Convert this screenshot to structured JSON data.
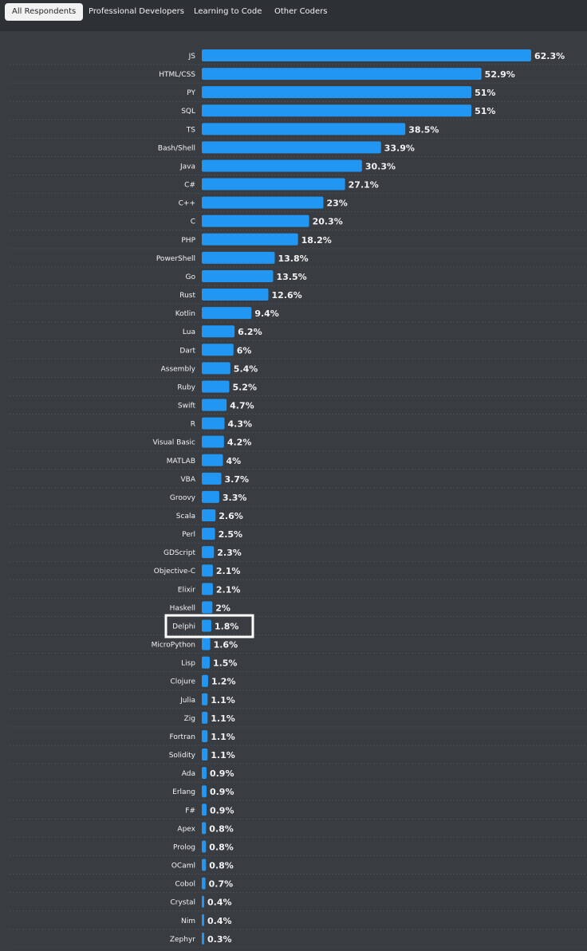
{
  "tabs": [
    {
      "label": "All Respondents",
      "active": true
    },
    {
      "label": "Professional Developers",
      "active": false
    },
    {
      "label": "Learning to Code",
      "active": false
    },
    {
      "label": "Other Coders",
      "active": false
    }
  ],
  "colors": {
    "bar": "#2196f3",
    "background": "#393c41",
    "tab_bar": "#2d3034",
    "text": "#f2f2f2",
    "highlight": "#ffffff"
  },
  "chart_data": {
    "type": "bar",
    "orientation": "horizontal",
    "value_suffix": "%",
    "highlighted": "Delphi",
    "xlim": [
      0,
      62.3
    ],
    "categories": [
      "JS",
      "HTML/CSS",
      "PY",
      "SQL",
      "TS",
      "Bash/Shell",
      "Java",
      "C#",
      "C++",
      "C",
      "PHP",
      "PowerShell",
      "Go",
      "Rust",
      "Kotlin",
      "Lua",
      "Dart",
      "Assembly",
      "Ruby",
      "Swift",
      "R",
      "Visual Basic",
      "MATLAB",
      "VBA",
      "Groovy",
      "Scala",
      "Perl",
      "GDScript",
      "Objective-C",
      "Elixir",
      "Haskell",
      "Delphi",
      "MicroPython",
      "Lisp",
      "Clojure",
      "Julia",
      "Zig",
      "Fortran",
      "Solidity",
      "Ada",
      "Erlang",
      "F#",
      "Apex",
      "Prolog",
      "OCaml",
      "Cobol",
      "Crystal",
      "Nim",
      "Zephyr"
    ],
    "values": [
      62.3,
      52.9,
      51,
      51,
      38.5,
      33.9,
      30.3,
      27.1,
      23,
      20.3,
      18.2,
      13.8,
      13.5,
      12.6,
      9.4,
      6.2,
      6,
      5.4,
      5.2,
      4.7,
      4.3,
      4.2,
      4,
      3.7,
      3.3,
      2.6,
      2.5,
      2.3,
      2.1,
      2.1,
      2,
      1.8,
      1.6,
      1.5,
      1.2,
      1.1,
      1.1,
      1.1,
      1.1,
      0.9,
      0.9,
      0.9,
      0.8,
      0.8,
      0.8,
      0.7,
      0.4,
      0.4,
      0.3
    ]
  }
}
